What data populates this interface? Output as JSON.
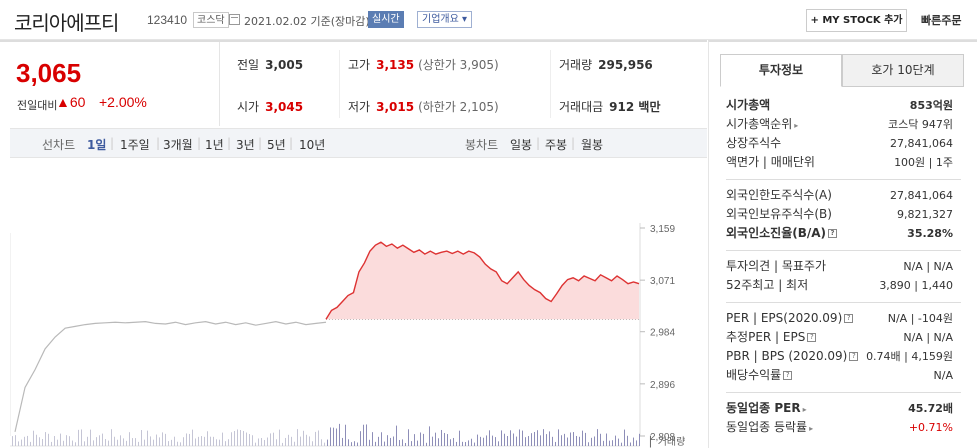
{
  "header": {
    "stock_name": "코리아에프티",
    "stock_code": "123410",
    "market": "코스닥",
    "date_text": "2021.02.02 기준(장마감)",
    "realtime_label": "실시간",
    "company_overview_label": "기업개요 ▾",
    "my_stock_label": "+ MY STOCK 추가",
    "quick_order_label": "빠른주문"
  },
  "quote": {
    "price": "3,065",
    "prev_compare_label": "전일대비",
    "change": "▲60",
    "change_pct": "+2.00%",
    "prev_close_label": "전일",
    "prev_close": "3,005",
    "high_label": "고가",
    "high": "3,135",
    "upper_limit_text": "(상한가 3,905)",
    "volume_label": "거래량",
    "volume": "295,956",
    "open_label": "시가",
    "open": "3,045",
    "low_label": "저가",
    "low": "3,015",
    "lower_limit_text": "(하한가 2,105)",
    "trade_value_label": "거래대금",
    "trade_value": "912 백만"
  },
  "period_bar": {
    "line_chart_label": "선차트",
    "periods": [
      "1일",
      "1주일",
      "3개월",
      "1년",
      "3년",
      "5년",
      "10년"
    ],
    "active_period": "1일",
    "candle_chart_label": "봉차트",
    "candles": [
      "일봉",
      "주봉",
      "월봉"
    ]
  },
  "chart_data": {
    "type": "line",
    "y_ticks": [
      "3,159",
      "3,071",
      "2,984",
      "2,896",
      "2,808"
    ],
    "ylim": [
      2808,
      3159
    ],
    "prev_close": 3005,
    "volume_label": "거래량",
    "gray_series": [
      2815,
      2890,
      2920,
      2955,
      2975,
      2990,
      2993,
      2996,
      2998,
      2999,
      3000,
      2999,
      3000,
      3001,
      2998,
      2997,
      3000,
      2996,
      2999,
      3001,
      2997,
      3000,
      2996,
      2999,
      2995,
      2998,
      3001,
      2997,
      3000,
      2996,
      2998,
      3000
    ],
    "red_series": [
      3005,
      3020,
      3025,
      3035,
      3045,
      3050,
      3085,
      3100,
      3120,
      3130,
      3135,
      3128,
      3132,
      3125,
      3130,
      3124,
      3118,
      3122,
      3115,
      3120,
      3115,
      3118,
      3120,
      3116,
      3120,
      3115,
      3120,
      3117,
      3110,
      3098,
      3090,
      3085,
      3070,
      3065,
      3075,
      3085,
      3072,
      3062,
      3055,
      3050,
      3040,
      3035,
      3048,
      3062,
      3072,
      3075,
      3070,
      3078,
      3074,
      3070,
      3080,
      3075,
      3070,
      3078,
      3072,
      3065,
      3068,
      3065
    ],
    "grid": false
  },
  "info": {
    "tab_invest": "투자정보",
    "tab_orderbook": "호가 10단계",
    "market_cap_label": "시가총액",
    "market_cap": "853억원",
    "market_cap_rank_label": "시가총액순위",
    "market_cap_rank": "코스닥 947위",
    "shares_label": "상장주식수",
    "shares": "27,841,064",
    "par_label": "액면가 | 매매단위",
    "par": "100원 | 1주",
    "foreign_limit_label": "외국인한도주식수(A)",
    "foreign_limit": "27,841,064",
    "foreign_hold_label": "외국인보유주식수(B)",
    "foreign_hold": "9,821,327",
    "foreign_ratio_label": "외국인소진율(B/A)",
    "foreign_ratio": "35.28%",
    "opinion_label": "투자의견 | 목표주가",
    "opinion": "N/A | N/A",
    "week52_label": "52주최고 | 최저",
    "week52": "3,890 | 1,440",
    "per_eps_label": "PER | EPS(2020.09)",
    "per_eps": "N/A | -104원",
    "est_per_eps_label": "추정PER | EPS",
    "est_per_eps": "N/A | N/A",
    "pbr_bps_label": "PBR | BPS (2020.09)",
    "pbr_bps": "0.74배 | 4,159원",
    "dividend_label": "배당수익률",
    "dividend": "N/A",
    "industry_per_label": "동일업종 PER",
    "industry_per": "45.72배",
    "industry_change_label": "동일업종 등락률",
    "industry_change": "+0.71%"
  }
}
